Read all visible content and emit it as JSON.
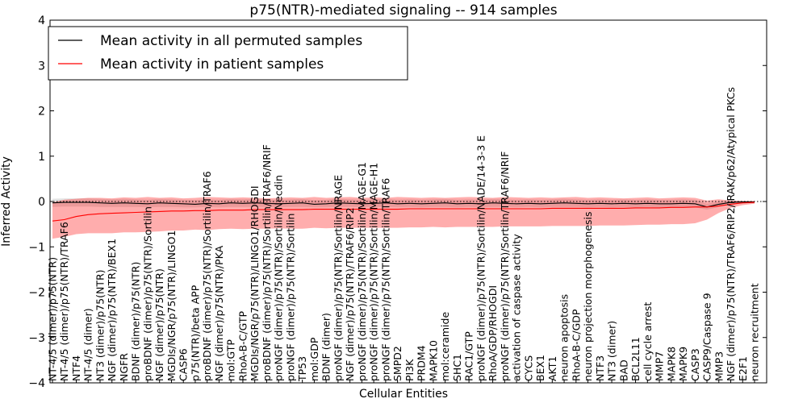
{
  "chart_data": {
    "type": "line",
    "title": "p75(NTR)-mediated signaling -- 914 samples",
    "xlabel": "Cellular Entities",
    "ylabel": "Inferred Activity",
    "ylim": [
      -4,
      4
    ],
    "yticks": [
      "4",
      "3",
      "2",
      "1",
      "0",
      "−1",
      "−2",
      "−3",
      "−4"
    ],
    "grid": false,
    "reference_line": 0,
    "legend_position": "top-left",
    "categories": [
      "NT-4/5 (dimer)/p75(NTR)",
      "NT-4/5 (dimer)/p75(NTR)/TRAF6",
      "NTF4",
      "NT-4/5 (dimer)",
      "NT3 (dimer)/p75(NTR)",
      "NGF (dimer)/p75(NTR)/BEX1",
      "NGFR",
      "BDNF (dimer)/p75(NTR)",
      "proBDNF (dimer)/p75(NTR)/Sortilin",
      "NGF (dimer)/p75(NTR)",
      "MGDIs/NGR/p75(NTR)/LINGO1",
      "CASP6",
      "p75(NTR)/beta APP",
      "proBDNF (dimer)/p75(NTR)/Sortilin/TRAF6",
      "NGF (dimer)/p75(NTR)/PKA",
      "mol:GTP",
      "RhoA-B-C/GTP",
      "MGDIs/NGR/p75(NTR)/LINGO1/RHOGDI",
      "proBDNF (dimer)/p75(NTR)/Sortilin/TRAF6/NRIF",
      "proNGF (dimer)/p75(NTR)/Sortilin/Necdin",
      "proNGF (dimer)/p75(NTR)/Sortilin",
      "TP53",
      "mol:GDP",
      "BDNF (dimer)",
      "proNGF (dimer)/p75(NTR)/Sortilin/NRAGE",
      "NGF (dimer)/p75(NTR)/TRAF6/RIP2",
      "proNGF (dimer)/p75(NTR)/Sortilin/MAGE-G1",
      "proNGF (dimer)/p75(NTR)/Sortilin/MAGE-H1",
      "proNGF (dimer)/p75(NTR)/Sortilin/TRAF6",
      "SMPD2",
      "PI3K",
      "PRDM4",
      "MAPK10",
      "mol:ceramide",
      "SHC1",
      "RAC1/GTP",
      "proNGF (dimer)/p75(NTR)/Sortilin/NADE/14-3-3 E",
      "RhoA/GDP/RHOGDI",
      "proNGF (dimer)/p75(NTR)/Sortilin/TRAF6/NRIF",
      "activation of caspase activity",
      "CYCS",
      "BEX1",
      "AKT1",
      "neuron apoptosis",
      "RhoA-B-C/GDP",
      "neuron projection morphogenesis",
      "NTF3",
      "NT3 (dimer)",
      "BAD",
      "BCL2L11",
      "cell cycle arrest",
      "MMP7",
      "MAPK8",
      "MAPK9",
      "CASP3",
      "CASP9/Caspase 9",
      "MMP3",
      "NGF (dimer)/p75(NTR)/TRAF6/RIP2/IRAK/p62/Atypical PKCs",
      "E2F1",
      "neuron recruitment"
    ],
    "series": [
      {
        "name": "Mean activity in all permuted samples",
        "color": "#000000",
        "values": [
          -0.03,
          -0.02,
          -0.02,
          -0.02,
          -0.03,
          -0.04,
          -0.03,
          -0.04,
          -0.05,
          -0.03,
          -0.04,
          -0.05,
          -0.06,
          -0.04,
          -0.05,
          -0.03,
          -0.04,
          -0.03,
          -0.04,
          -0.05,
          -0.04,
          -0.03,
          -0.06,
          -0.05,
          -0.03,
          -0.04,
          -0.05,
          -0.04,
          -0.03,
          -0.05,
          -0.04,
          -0.05,
          -0.04,
          -0.03,
          -0.05,
          -0.04,
          -0.05,
          -0.03,
          -0.04,
          -0.05,
          -0.04,
          -0.05,
          -0.04,
          -0.03,
          -0.04,
          -0.05,
          -0.04,
          -0.05,
          -0.04,
          -0.05,
          -0.04,
          -0.05,
          -0.05,
          -0.04,
          -0.05,
          -0.12,
          -0.06,
          -0.02,
          -0.01,
          -0.01
        ]
      },
      {
        "name": "Mean activity in patient samples",
        "color": "#ff0000",
        "values": [
          -0.43,
          -0.4,
          -0.33,
          -0.29,
          -0.27,
          -0.26,
          -0.25,
          -0.24,
          -0.23,
          -0.22,
          -0.21,
          -0.21,
          -0.2,
          -0.2,
          -0.19,
          -0.19,
          -0.19,
          -0.18,
          -0.18,
          -0.18,
          -0.18,
          -0.18,
          -0.17,
          -0.17,
          -0.17,
          -0.17,
          -0.17,
          -0.17,
          -0.17,
          -0.17,
          -0.16,
          -0.16,
          -0.16,
          -0.16,
          -0.16,
          -0.16,
          -0.16,
          -0.16,
          -0.16,
          -0.16,
          -0.16,
          -0.16,
          -0.15,
          -0.15,
          -0.15,
          -0.15,
          -0.15,
          -0.15,
          -0.15,
          -0.14,
          -0.14,
          -0.14,
          -0.13,
          -0.13,
          -0.12,
          -0.12,
          -0.1,
          -0.06,
          -0.03,
          -0.02
        ]
      }
    ],
    "patient_band": {
      "color": "#ff0000",
      "lower": [
        -0.82,
        -0.78,
        -0.72,
        -0.7,
        -0.7,
        -0.7,
        -0.68,
        -0.68,
        -0.67,
        -0.66,
        -0.64,
        -0.64,
        -0.62,
        -0.63,
        -0.61,
        -0.6,
        -0.61,
        -0.6,
        -0.6,
        -0.59,
        -0.6,
        -0.6,
        -0.58,
        -0.59,
        -0.58,
        -0.58,
        -0.58,
        -0.58,
        -0.58,
        -0.58,
        -0.57,
        -0.57,
        -0.56,
        -0.57,
        -0.56,
        -0.56,
        -0.56,
        -0.56,
        -0.55,
        -0.55,
        -0.55,
        -0.55,
        -0.54,
        -0.54,
        -0.54,
        -0.54,
        -0.53,
        -0.53,
        -0.53,
        -0.52,
        -0.51,
        -0.51,
        -0.5,
        -0.5,
        -0.48,
        -0.4,
        -0.25,
        -0.14,
        -0.08,
        -0.05
      ],
      "upper": [
        -0.02,
        0.04,
        0.06,
        0.08,
        0.08,
        0.07,
        0.09,
        0.08,
        0.1,
        0.08,
        0.09,
        0.07,
        0.08,
        0.1,
        0.09,
        0.08,
        0.09,
        0.08,
        0.07,
        0.08,
        0.09,
        0.08,
        0.1,
        0.08,
        0.09,
        0.1,
        0.08,
        0.09,
        0.08,
        0.1,
        0.09,
        0.08,
        0.09,
        0.08,
        0.09,
        0.1,
        0.09,
        0.08,
        0.1,
        0.09,
        0.08,
        0.09,
        0.08,
        0.09,
        0.1,
        0.08,
        0.09,
        0.08,
        0.07,
        0.08,
        0.09,
        0.07,
        0.08,
        0.09,
        0.08,
        0.02,
        0.05,
        0.02,
        0.01,
        0.01
      ]
    },
    "permuted_band": {
      "color": "#cccccc",
      "lower": [
        -0.12,
        -0.11,
        -0.11,
        -0.11,
        -0.12,
        -0.12,
        -0.12,
        -0.12,
        -0.13,
        -0.12,
        -0.12,
        -0.13,
        -0.13,
        -0.12,
        -0.13,
        -0.12,
        -0.12,
        -0.12,
        -0.12,
        -0.13,
        -0.12,
        -0.12,
        -0.13,
        -0.13,
        -0.12,
        -0.12,
        -0.13,
        -0.12,
        -0.12,
        -0.13,
        -0.12,
        -0.13,
        -0.12,
        -0.12,
        -0.13,
        -0.12,
        -0.13,
        -0.12,
        -0.12,
        -0.13,
        -0.12,
        -0.13,
        -0.12,
        -0.12,
        -0.12,
        -0.13,
        -0.12,
        -0.13,
        -0.12,
        -0.13,
        -0.12,
        -0.13,
        -0.13,
        -0.12,
        -0.13,
        -0.18,
        -0.12,
        -0.06,
        -0.04,
        -0.03
      ],
      "upper": [
        0.06,
        0.07,
        0.07,
        0.07,
        0.06,
        0.05,
        0.06,
        0.05,
        0.04,
        0.06,
        0.05,
        0.04,
        0.03,
        0.05,
        0.04,
        0.06,
        0.05,
        0.06,
        0.05,
        0.04,
        0.05,
        0.06,
        0.03,
        0.04,
        0.06,
        0.05,
        0.04,
        0.05,
        0.06,
        0.04,
        0.05,
        0.04,
        0.05,
        0.06,
        0.04,
        0.05,
        0.04,
        0.06,
        0.05,
        0.04,
        0.05,
        0.04,
        0.05,
        0.06,
        0.05,
        0.04,
        0.05,
        0.04,
        0.05,
        0.04,
        0.05,
        0.04,
        0.04,
        0.05,
        0.04,
        -0.05,
        0.0,
        0.02,
        0.02,
        0.01
      ]
    }
  }
}
